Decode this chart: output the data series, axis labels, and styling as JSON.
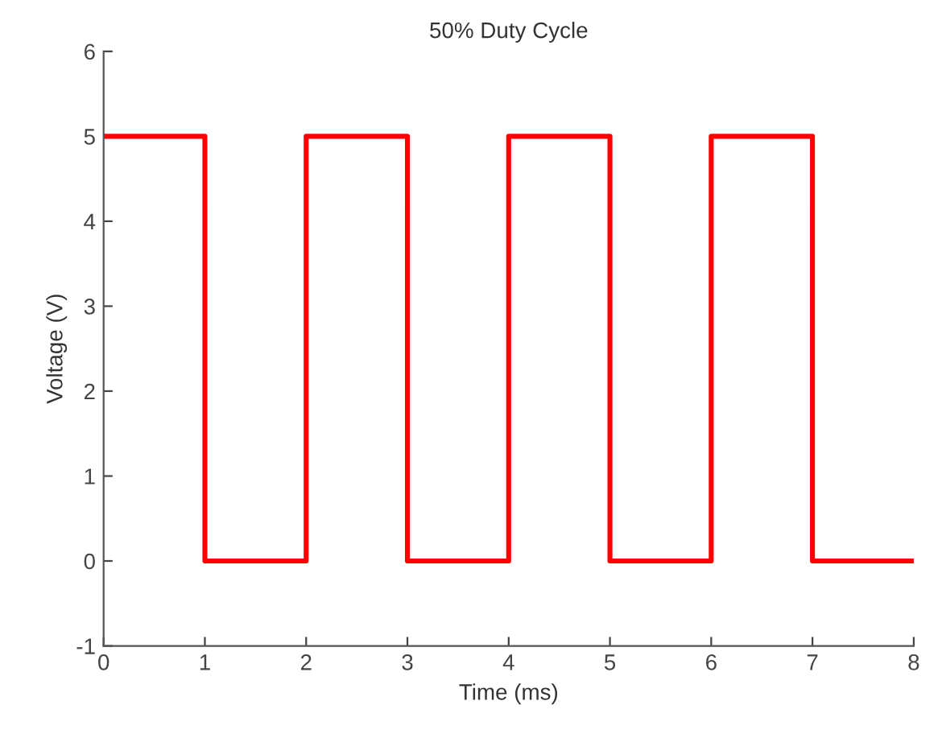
{
  "chart_data": {
    "type": "step",
    "title": "50% Duty Cycle",
    "xlabel": "Time (ms)",
    "ylabel": "Voltage (V)",
    "x": [
      0,
      1,
      2,
      3,
      4,
      5,
      6,
      7,
      8
    ],
    "series": [
      {
        "color": "#ff0000",
        "values": [
          5,
          0,
          5,
          0,
          5,
          0,
          5,
          0,
          0
        ]
      }
    ],
    "xlim": [
      0,
      8
    ],
    "ylim": [
      -1,
      6
    ],
    "xticks": [
      0,
      1,
      2,
      3,
      4,
      5,
      6,
      7,
      8
    ],
    "yticks": [
      -1,
      0,
      1,
      2,
      3,
      4,
      5,
      6
    ],
    "grid": false,
    "legend": false,
    "line_style": "solid",
    "marker": "none"
  }
}
